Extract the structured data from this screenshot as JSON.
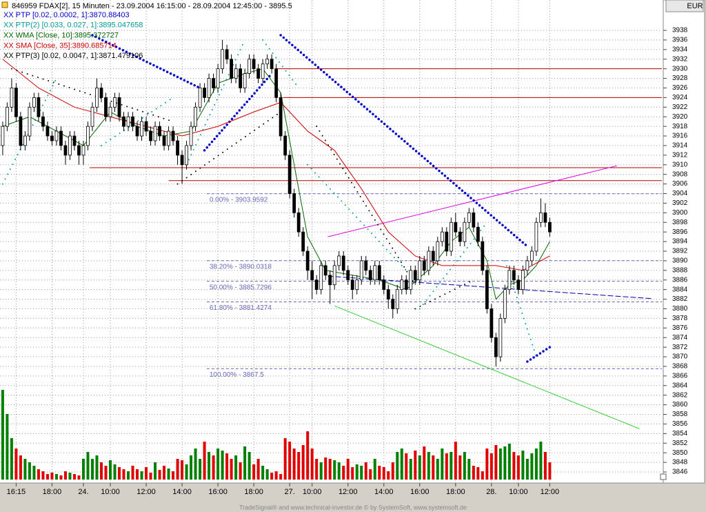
{
  "header": {
    "title": "846959  FDAX[2], 15 Minuten - 23.09.2004 16:15:00 - 28.09.2004 12:45:00 - 3895.5",
    "currency": "EUR",
    "footer": "TradeSignal® and www.technical-investor.de © by SystemSoft, www.systemsoft.de"
  },
  "chart_data": {
    "type": "candlestick",
    "categories": [
      null,
      null,
      null,
      "16:15",
      null,
      null,
      null,
      null,
      null,
      null,
      null,
      "18:00",
      null,
      null,
      null,
      null,
      null,
      null,
      "24.",
      null,
      null,
      null,
      null,
      null,
      "10:00",
      null,
      null,
      null,
      null,
      null,
      null,
      null,
      "12:00",
      null,
      null,
      null,
      null,
      null,
      null,
      null,
      "14:00",
      null,
      null,
      null,
      null,
      null,
      null,
      null,
      "16:00",
      null,
      null,
      null,
      null,
      null,
      null,
      null,
      "18:00",
      null,
      null,
      null,
      null,
      null,
      null,
      null,
      "27.",
      null,
      null,
      null,
      null,
      "10:00",
      null,
      null,
      null,
      null,
      null,
      null,
      null,
      "12:00",
      null,
      null,
      null,
      null,
      null,
      null,
      null,
      "14:00",
      null,
      null,
      null,
      null,
      null,
      null,
      null,
      "16:00",
      null,
      null,
      null,
      null,
      null,
      null,
      null,
      "18:00",
      null,
      null,
      null,
      null,
      null,
      null,
      null,
      "28.",
      null,
      null,
      null,
      null,
      null,
      "10:00",
      null,
      null,
      null,
      null,
      null,
      null,
      "12:00"
    ],
    "ohlc": [
      [
        3914,
        3919,
        3912,
        3918
      ],
      [
        3918,
        3923,
        3917,
        3922
      ],
      [
        3922,
        3928,
        3921,
        3926
      ],
      [
        3926,
        3927,
        3919,
        3920
      ],
      [
        3920,
        3921,
        3913,
        3914
      ],
      [
        3914,
        3917,
        3913,
        3916
      ],
      [
        3916,
        3923,
        3915,
        3922
      ],
      [
        3922,
        3925,
        3921,
        3924
      ],
      [
        3924,
        3925,
        3919,
        3920
      ],
      [
        3920,
        3921,
        3917,
        3918
      ],
      [
        3918,
        3919,
        3915,
        3916
      ],
      [
        3916,
        3917,
        3914,
        3915
      ],
      [
        3915,
        3918,
        3914,
        3917
      ],
      [
        3917,
        3918,
        3913,
        3914
      ],
      [
        3914,
        3915,
        3910,
        3912
      ],
      [
        3912,
        3917,
        3911,
        3916
      ],
      [
        3916,
        3917,
        3913,
        3914
      ],
      [
        3914,
        3915,
        3910,
        3912
      ],
      [
        3912,
        3915,
        3910,
        3914
      ],
      [
        3914,
        3919,
        3913,
        3918
      ],
      [
        3918,
        3923,
        3917,
        3922
      ],
      [
        3922,
        3928,
        3921,
        3926
      ],
      [
        3926,
        3927,
        3923,
        3924
      ],
      [
        3924,
        3925,
        3919,
        3920
      ],
      [
        3920,
        3923,
        3919,
        3922
      ],
      [
        3922,
        3925,
        3921,
        3924
      ],
      [
        3924,
        3925,
        3919,
        3920
      ],
      [
        3920,
        3921,
        3917,
        3918
      ],
      [
        3918,
        3921,
        3917,
        3920
      ],
      [
        3920,
        3921,
        3917,
        3918
      ],
      [
        3918,
        3919,
        3915,
        3916
      ],
      [
        3916,
        3920,
        3915,
        3919
      ],
      [
        3919,
        3920,
        3916,
        3917
      ],
      [
        3917,
        3918,
        3914,
        3915
      ],
      [
        3915,
        3919,
        3914,
        3918
      ],
      [
        3918,
        3919,
        3915,
        3916
      ],
      [
        3916,
        3917,
        3913,
        3914
      ],
      [
        3914,
        3918,
        3913,
        3917
      ],
      [
        3917,
        3918,
        3914,
        3915
      ],
      [
        3915,
        3916,
        3910,
        3912
      ],
      [
        3912,
        3913,
        3906,
        3910
      ],
      [
        3910,
        3915,
        3909,
        3914
      ],
      [
        3914,
        3919,
        3913,
        3918
      ],
      [
        3918,
        3923,
        3917,
        3922
      ],
      [
        3922,
        3927,
        3921,
        3926
      ],
      [
        3926,
        3927,
        3923,
        3924
      ],
      [
        3924,
        3929,
        3923,
        3928
      ],
      [
        3928,
        3929,
        3925,
        3926
      ],
      [
        3926,
        3931,
        3925,
        3930
      ],
      [
        3930,
        3936,
        3929,
        3934
      ],
      [
        3934,
        3935,
        3931,
        3932
      ],
      [
        3932,
        3933,
        3927,
        3928
      ],
      [
        3928,
        3931,
        3927,
        3930
      ],
      [
        3930,
        3931,
        3925,
        3926
      ],
      [
        3926,
        3930,
        3925,
        3929
      ],
      [
        3929,
        3933,
        3928,
        3932
      ],
      [
        3932,
        3933,
        3929,
        3930
      ],
      [
        3930,
        3931,
        3927,
        3928
      ],
      [
        3928,
        3932,
        3927,
        3931
      ],
      [
        3931,
        3933,
        3930,
        3932
      ],
      [
        3932,
        3933,
        3929,
        3930
      ],
      [
        3930,
        3931,
        3923,
        3924
      ],
      [
        3924,
        3925,
        3915,
        3916
      ],
      [
        3916,
        3917,
        3911,
        3912
      ],
      [
        3912,
        3913,
        3903,
        3904
      ],
      [
        3904,
        3905,
        3899,
        3900
      ],
      [
        3900,
        3901,
        3895,
        3896
      ],
      [
        3896,
        3897,
        3891,
        3892
      ],
      [
        3892,
        3893,
        3886,
        3888
      ],
      [
        3888,
        3890,
        3882,
        3886
      ],
      [
        3886,
        3887,
        3883,
        3884
      ],
      [
        3884,
        3890,
        3883,
        3889
      ],
      [
        3889,
        3890,
        3886,
        3887
      ],
      [
        3887,
        3888,
        3881,
        3885
      ],
      [
        3885,
        3890,
        3884,
        3889
      ],
      [
        3889,
        3892,
        3888,
        3891
      ],
      [
        3891,
        3892,
        3887,
        3888
      ],
      [
        3888,
        3889,
        3885,
        3886
      ],
      [
        3886,
        3887,
        3882,
        3884
      ],
      [
        3884,
        3887,
        3883,
        3886
      ],
      [
        3886,
        3891,
        3885,
        3890
      ],
      [
        3890,
        3891,
        3887,
        3888
      ],
      [
        3888,
        3889,
        3885,
        3886
      ],
      [
        3886,
        3890,
        3885,
        3889
      ],
      [
        3889,
        3890,
        3885,
        3886
      ],
      [
        3886,
        3887,
        3883,
        3884
      ],
      [
        3884,
        3885,
        3880,
        3882
      ],
      [
        3882,
        3883,
        3878,
        3880
      ],
      [
        3880,
        3885,
        3879,
        3884
      ],
      [
        3884,
        3887,
        3883,
        3886
      ],
      [
        3886,
        3887,
        3883,
        3884
      ],
      [
        3884,
        3889,
        3883,
        3888
      ],
      [
        3888,
        3889,
        3885,
        3886
      ],
      [
        3886,
        3891,
        3885,
        3890
      ],
      [
        3890,
        3891,
        3887,
        3888
      ],
      [
        3888,
        3893,
        3887,
        3892
      ],
      [
        3892,
        3893,
        3889,
        3890
      ],
      [
        3890,
        3895,
        3889,
        3894
      ],
      [
        3894,
        3897,
        3893,
        3896
      ],
      [
        3896,
        3897,
        3891,
        3892
      ],
      [
        3892,
        3899,
        3891,
        3898
      ],
      [
        3898,
        3900,
        3895,
        3896
      ],
      [
        3896,
        3897,
        3893,
        3894
      ],
      [
        3894,
        3899,
        3893,
        3898
      ],
      [
        3898,
        3901,
        3897,
        3900
      ],
      [
        3900,
        3901,
        3896,
        3897
      ],
      [
        3897,
        3898,
        3893,
        3894
      ],
      [
        3894,
        3895,
        3887,
        3888
      ],
      [
        3888,
        3889,
        3879,
        3880
      ],
      [
        3880,
        3881,
        3873,
        3874
      ],
      [
        3874,
        3875,
        3868,
        3870
      ],
      [
        3870,
        3879,
        3869,
        3878
      ],
      [
        3878,
        3885,
        3877,
        3884
      ],
      [
        3884,
        3889,
        3883,
        3888
      ],
      [
        3888,
        3889,
        3885,
        3886
      ],
      [
        3886,
        3887,
        3883,
        3884
      ],
      [
        3884,
        3889,
        3883,
        3888
      ],
      [
        3888,
        3891,
        3887,
        3890
      ],
      [
        3890,
        3893,
        3889,
        3892
      ],
      [
        3892,
        3899,
        3891,
        3898
      ],
      [
        3898,
        3903,
        3897,
        3900
      ],
      [
        3900,
        3902,
        3897,
        3898
      ],
      [
        3898,
        3899,
        3895,
        3896
      ]
    ],
    "volume": [
      130,
      95,
      60,
      45,
      35,
      30,
      25,
      20,
      15,
      12,
      8,
      10,
      8,
      6,
      12,
      10,
      8,
      6,
      30,
      40,
      30,
      35,
      25,
      20,
      28,
      22,
      18,
      15,
      12,
      20,
      15,
      12,
      18,
      10,
      25,
      14,
      20,
      16,
      12,
      30,
      28,
      22,
      35,
      45,
      30,
      55,
      40,
      35,
      45,
      42,
      38,
      30,
      35,
      25,
      48,
      40,
      22,
      30,
      20,
      15,
      10,
      12,
      8,
      60,
      55,
      45,
      40,
      50,
      70,
      45,
      30,
      25,
      32,
      30,
      28,
      25,
      20,
      30,
      18,
      22,
      20,
      25,
      15,
      30,
      20,
      18,
      12,
      25,
      40,
      45,
      38,
      30,
      42,
      35,
      48,
      40,
      35,
      30,
      45,
      38,
      40,
      55,
      35,
      40,
      30,
      20,
      18,
      12,
      45,
      38,
      50,
      45,
      48,
      52,
      40,
      35,
      42,
      30,
      38,
      45,
      55,
      40,
      25
    ],
    "xlim": [
      -0.6,
      147
    ],
    "ylim": [
      3843.7,
      3941.45
    ],
    "yticks": [
      3846,
      3848,
      3850,
      3852,
      3854,
      3856,
      3858,
      3860,
      3862,
      3864,
      3866,
      3868,
      3870,
      3872,
      3874,
      3876,
      3878,
      3880,
      3882,
      3884,
      3886,
      3888,
      3890,
      3892,
      3894,
      3896,
      3898,
      3900,
      3902,
      3904,
      3906,
      3908,
      3910,
      3912,
      3914,
      3916,
      3918,
      3920,
      3922,
      3924,
      3926,
      3928,
      3930,
      3932,
      3934,
      3936,
      3938
    ],
    "volume_ylim": [
      0,
      140
    ],
    "grid": true,
    "up_color": "#008000",
    "down_color": "#e00000",
    "series": [
      {
        "name": "XX PTP [0.02, 0.0002, 1]:3870.88403",
        "color": "#0000cc",
        "style": "dots",
        "segments": [
          {
            "x": [
              20,
              44
            ],
            "values": [
              3937,
              3926
            ]
          },
          {
            "x": [
              45,
              60
            ],
            "values": [
              3913,
              3929
            ]
          },
          {
            "x": [
              62,
              117
            ],
            "values": [
              3937,
              3893
            ]
          },
          {
            "x": [
              117,
              122
            ],
            "values": [
              3869,
              3872
            ]
          }
        ]
      },
      {
        "name": "XX PTP(2) [0.033, 0.027, 1]:3895.047658",
        "color": "#009999",
        "style": "dots",
        "segments": [
          {
            "x": [
              0,
              12
            ],
            "values": [
              3906,
              3928
            ]
          },
          {
            "x": [
              22,
              38
            ],
            "values": [
              3914,
              3924
            ]
          },
          {
            "x": [
              41,
              54
            ],
            "values": [
              3910,
              3936
            ]
          },
          {
            "x": [
              58,
              66
            ],
            "values": [
              3936,
              3926
            ]
          },
          {
            "x": [
              68,
              90
            ],
            "values": [
              3910,
              3888
            ]
          },
          {
            "x": [
              93,
              108
            ],
            "values": [
              3880,
              3898
            ]
          },
          {
            "x": [
              112,
              119
            ],
            "values": [
              3890,
              3870
            ]
          }
        ]
      },
      {
        "name": "XX WMA [Close, 10]:3895.372727",
        "color": "#006600",
        "style": "line",
        "x": [
          0,
          6,
          12,
          18,
          24,
          30,
          36,
          42,
          48,
          54,
          58,
          62,
          64,
          66,
          68,
          72,
          78,
          84,
          90,
          96,
          100,
          104,
          108,
          110,
          113,
          116,
          119,
          122
        ],
        "values": [
          3918,
          3920,
          3917,
          3914,
          3921,
          3918,
          3916,
          3917,
          3927,
          3929,
          3930,
          3925,
          3915,
          3905,
          3895,
          3888,
          3887,
          3886,
          3884,
          3889,
          3894,
          3897,
          3890,
          3882,
          3885,
          3886,
          3889,
          3894
        ]
      },
      {
        "name": "XX SMA [Close, 35]:3890.685714",
        "color": "#cc0000",
        "style": "line",
        "x": [
          0,
          8,
          16,
          24,
          32,
          40,
          48,
          56,
          62,
          68,
          74,
          80,
          86,
          92,
          98,
          104,
          110,
          116,
          122
        ],
        "values": [
          3932,
          3926,
          3922,
          3920,
          3918,
          3916,
          3918,
          3921,
          3923,
          3917,
          3913,
          3905,
          3896,
          3891,
          3889,
          3889,
          3889,
          3888,
          3891
        ]
      },
      {
        "name": "XX PTP(3) [0.02, 0.0047, 1]:3871.479106",
        "color": "#000000",
        "style": "dots",
        "segments": [
          {
            "x": [
              2,
              38
            ],
            "values": [
              3930,
              3919
            ]
          },
          {
            "x": [
              39,
              62
            ],
            "values": [
              3906,
              3921
            ]
          },
          {
            "x": [
              70,
              92
            ],
            "values": [
              3918,
              3885
            ]
          },
          {
            "x": [
              92,
              105
            ],
            "values": [
              3880,
              3886
            ]
          }
        ]
      }
    ],
    "levels": [
      {
        "value": 3930,
        "x": [
          61,
          147
        ],
        "color": "#b00000"
      },
      {
        "value": 3924,
        "x": [
          62.5,
          147
        ],
        "color": "#b00000"
      },
      {
        "value": 3909.4,
        "x": [
          19.4,
          147
        ],
        "color": "#b00000"
      },
      {
        "value": 3906.7,
        "x": [
          37,
          147
        ],
        "color": "#b00000"
      }
    ],
    "trendlines": [
      {
        "x": [
          72.5,
          137
        ],
        "values": [
          3895,
          3909.8
        ],
        "color": "#dd00dd",
        "dashed": false
      },
      {
        "x": [
          74,
          142
        ],
        "values": [
          3880.6,
          3855
        ],
        "color": "#33cc33",
        "dashed": false
      },
      {
        "x": [
          72.5,
          145
        ],
        "values": [
          3886.8,
          3882.1
        ],
        "color": "#0000aa",
        "dashed": true
      }
    ],
    "fibonacci": {
      "color": "#6666bb",
      "x": [
        45.5,
        147
      ],
      "levels": [
        {
          "value": 3903.9592,
          "label": "0.00% - 3903.9592"
        },
        {
          "value": 3890.0318,
          "label": "38.20% - 3890.0318"
        },
        {
          "value": 3885.7296,
          "label": "50.00% - 3885.7296"
        },
        {
          "value": 3881.4274,
          "label": "61.80% - 3881.4274"
        },
        {
          "value": 3867.5,
          "label": "100.00% - 3867.5"
        }
      ]
    }
  }
}
